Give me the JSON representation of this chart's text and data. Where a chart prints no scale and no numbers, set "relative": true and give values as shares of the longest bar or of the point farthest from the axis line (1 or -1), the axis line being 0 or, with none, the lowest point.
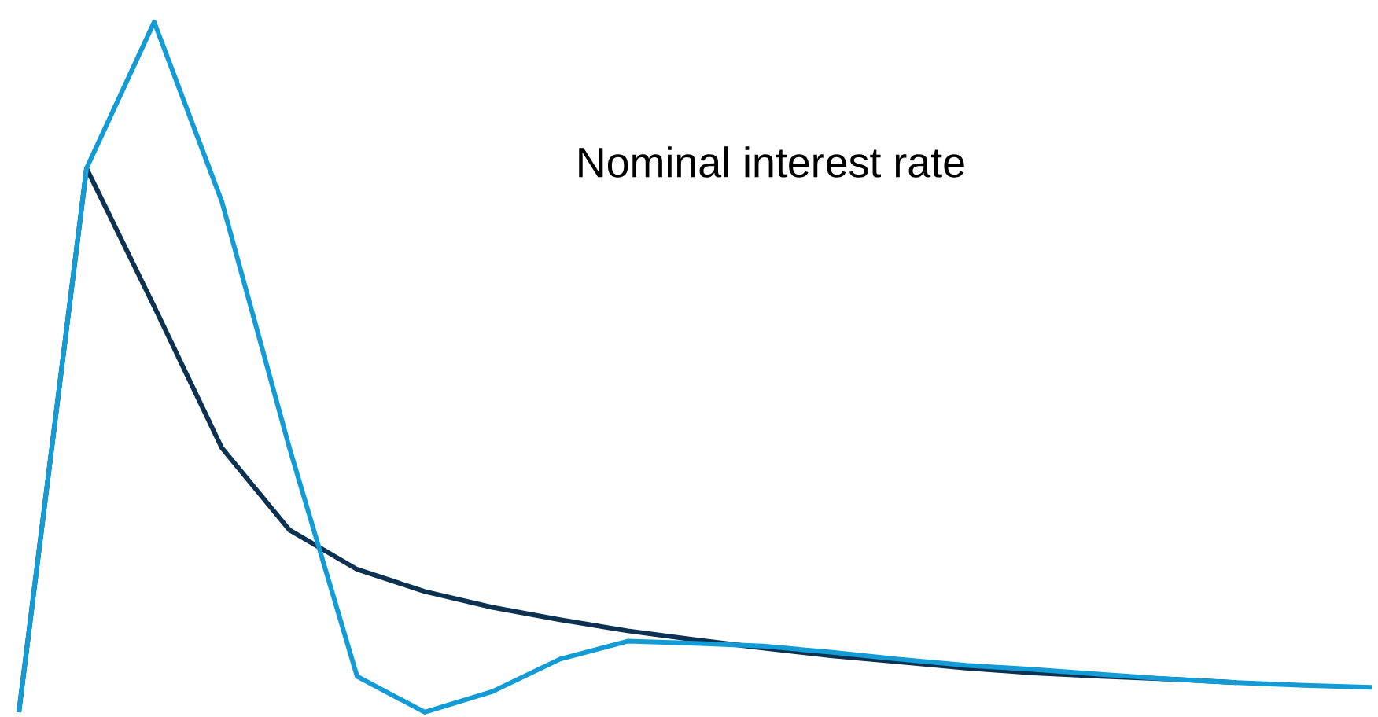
{
  "chart_data": {
    "type": "line",
    "title": "Nominal interest rate",
    "relative": true,
    "marker": "none",
    "line_style": "solid",
    "categories": [
      null,
      null,
      null,
      null,
      null,
      null,
      null,
      null,
      null,
      null,
      null,
      null,
      null,
      null,
      null,
      null,
      null,
      null,
      null,
      null,
      null
    ],
    "series": [
      {
        "color": "#0d3251",
        "values": [
          0,
          0.788,
          0.588,
          0.383,
          0.264,
          0.207,
          0.175,
          0.152,
          0.134,
          0.118,
          0.105,
          0.093,
          0.082,
          0.073,
          0.064,
          0.057,
          0.052,
          0.048,
          0.043,
          null,
          null
        ]
      },
      {
        "color": "#139bd6",
        "values": [
          0,
          0.788,
          1,
          0.74,
          0.383,
          0.052,
          0,
          0.03,
          0.077,
          0.103,
          0.1,
          0.096,
          0.087,
          0.077,
          0.068,
          0.062,
          0.055,
          0.048,
          0.043,
          0.039,
          0.036
        ]
      }
    ]
  }
}
